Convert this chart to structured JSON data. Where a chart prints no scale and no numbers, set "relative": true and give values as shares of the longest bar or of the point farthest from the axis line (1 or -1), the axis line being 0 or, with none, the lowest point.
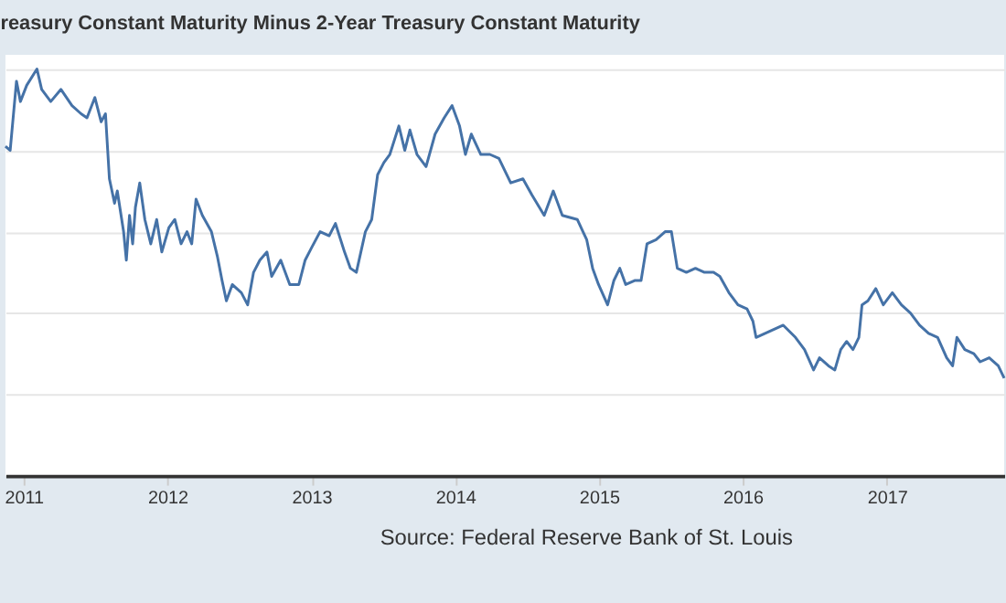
{
  "chart_data": {
    "type": "line",
    "title": "reasury Constant Maturity Minus 2-Year Treasury Constant Maturity",
    "annotations": [
      "Source: Federal Reserve Bank of St. Louis"
    ],
    "relative": true,
    "grid": "y",
    "color": "#4572a7",
    "xlim": [
      "2010-11-16",
      "2017-10-26"
    ],
    "xticks": [
      "2011",
      "2012",
      "2013",
      "2014",
      "2015",
      "2016",
      "2017"
    ],
    "x": [
      "2010-11-16",
      "2010-11-28",
      "2010-12-14",
      "2010-12-24",
      "2011-01-09",
      "2011-02-04",
      "2011-02-16",
      "2011-03-11",
      "2011-04-06",
      "2011-05-04",
      "2011-05-27",
      "2011-06-11",
      "2011-07-01",
      "2011-07-17",
      "2011-07-28",
      "2011-08-07",
      "2011-08-20",
      "2011-08-27",
      "2011-09-12",
      "2011-09-19",
      "2011-09-27",
      "2011-10-05",
      "2011-10-12",
      "2011-10-23",
      "2011-11-05",
      "2011-11-20",
      "2011-12-05",
      "2011-12-18",
      "2012-01-05",
      "2012-01-20",
      "2012-02-05",
      "2012-02-20",
      "2012-03-03",
      "2012-03-14",
      "2012-03-30",
      "2012-04-22",
      "2012-05-07",
      "2012-05-19",
      "2012-05-30",
      "2012-06-14",
      "2012-07-07",
      "2012-07-23",
      "2012-08-07",
      "2012-08-23",
      "2012-09-10",
      "2012-09-22",
      "2012-10-15",
      "2012-11-07",
      "2012-11-30",
      "2012-12-16",
      "2013-01-01",
      "2013-01-23",
      "2013-02-15",
      "2013-03-03",
      "2013-03-26",
      "2013-04-10",
      "2013-04-25",
      "2013-05-18",
      "2013-06-03",
      "2013-06-18",
      "2013-07-04",
      "2013-07-19",
      "2013-08-11",
      "2013-08-26",
      "2013-09-08",
      "2013-09-26",
      "2013-10-19",
      "2013-11-11",
      "2013-12-04",
      "2013-12-24",
      "2014-01-12",
      "2014-01-27",
      "2014-02-11",
      "2014-03-07",
      "2014-03-30",
      "2014-04-22",
      "2014-05-22",
      "2014-06-22",
      "2014-07-15",
      "2014-08-15",
      "2014-09-07",
      "2014-09-30",
      "2014-11-07",
      "2014-12-01",
      "2014-12-16",
      "2014-12-31",
      "2015-01-23",
      "2015-02-08",
      "2015-02-23",
      "2015-03-10",
      "2015-04-03",
      "2015-04-18",
      "2015-05-03",
      "2015-05-26",
      "2015-06-18",
      "2015-07-04",
      "2015-07-19",
      "2015-08-11",
      "2015-09-03",
      "2015-09-26",
      "2015-10-19",
      "2015-11-04",
      "2015-11-27",
      "2015-12-20",
      "2016-01-12",
      "2016-01-27",
      "2016-02-04",
      "2016-02-27",
      "2016-03-21",
      "2016-04-13",
      "2016-05-14",
      "2016-06-06",
      "2016-06-29",
      "2016-07-14",
      "2016-08-06",
      "2016-08-22",
      "2016-09-06",
      "2016-09-21",
      "2016-10-07",
      "2016-10-22",
      "2016-10-30",
      "2016-11-14",
      "2016-12-04",
      "2016-12-23",
      "2017-01-15",
      "2017-02-07",
      "2017-03-02",
      "2017-03-25",
      "2017-04-17",
      "2017-05-10",
      "2017-06-02",
      "2017-06-17",
      "2017-06-28",
      "2017-07-18",
      "2017-08-10",
      "2017-08-26",
      "2017-09-18",
      "2017-10-11",
      "2017-10-26"
    ],
    "values": [
      0.81,
      0.8,
      0.97,
      0.92,
      0.96,
      1.0,
      0.95,
      0.92,
      0.95,
      0.91,
      0.89,
      0.88,
      0.93,
      0.87,
      0.89,
      0.73,
      0.67,
      0.7,
      0.6,
      0.53,
      0.64,
      0.57,
      0.66,
      0.72,
      0.63,
      0.57,
      0.63,
      0.55,
      0.61,
      0.63,
      0.57,
      0.6,
      0.57,
      0.68,
      0.64,
      0.6,
      0.54,
      0.48,
      0.43,
      0.47,
      0.45,
      0.42,
      0.5,
      0.53,
      0.55,
      0.49,
      0.53,
      0.47,
      0.47,
      0.53,
      0.56,
      0.6,
      0.59,
      0.62,
      0.55,
      0.51,
      0.5,
      0.6,
      0.63,
      0.74,
      0.77,
      0.79,
      0.86,
      0.8,
      0.85,
      0.79,
      0.76,
      0.84,
      0.88,
      0.91,
      0.86,
      0.79,
      0.84,
      0.79,
      0.79,
      0.78,
      0.72,
      0.73,
      0.69,
      0.64,
      0.7,
      0.64,
      0.63,
      0.58,
      0.51,
      0.47,
      0.42,
      0.48,
      0.51,
      0.47,
      0.48,
      0.48,
      0.57,
      0.58,
      0.6,
      0.6,
      0.51,
      0.5,
      0.51,
      0.5,
      0.5,
      0.49,
      0.45,
      0.42,
      0.41,
      0.38,
      0.34,
      0.35,
      0.36,
      0.37,
      0.34,
      0.31,
      0.26,
      0.29,
      0.27,
      0.26,
      0.31,
      0.33,
      0.31,
      0.34,
      0.42,
      0.43,
      0.46,
      0.42,
      0.45,
      0.42,
      0.4,
      0.37,
      0.35,
      0.34,
      0.29,
      0.27,
      0.34,
      0.31,
      0.3,
      0.28,
      0.29,
      0.27,
      0.24
    ]
  }
}
